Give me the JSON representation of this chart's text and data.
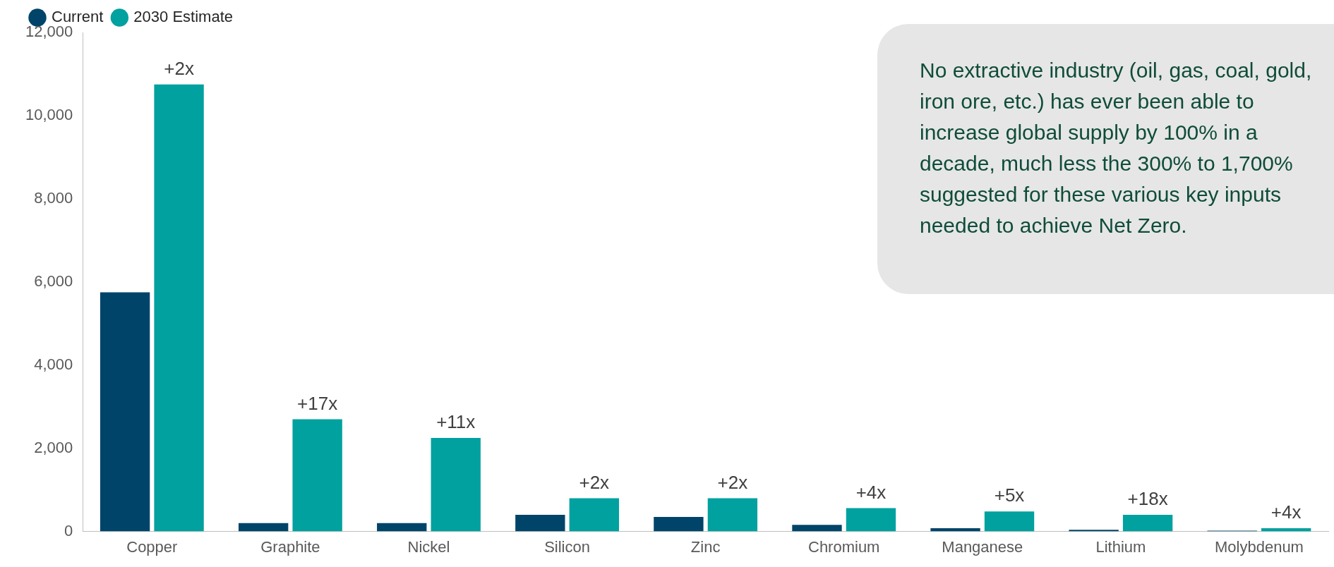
{
  "chart_data": {
    "type": "bar",
    "categories": [
      "Copper",
      "Graphite",
      "Nickel",
      "Silicon",
      "Zinc",
      "Chromium",
      "Manganese",
      "Lithium",
      "Molybdenum"
    ],
    "series": [
      {
        "name": "Current",
        "color": "#00446a",
        "values": [
          5750,
          200,
          200,
          400,
          350,
          160,
          80,
          40,
          20
        ]
      },
      {
        "name": "2030 Estimate",
        "color": "#00a19f",
        "values": [
          10750,
          2700,
          2250,
          800,
          800,
          560,
          480,
          400,
          80
        ]
      }
    ],
    "ylim": [
      0,
      12000
    ],
    "yticks": [
      0,
      {
        "value": 2000,
        "label": "2,000"
      },
      {
        "value": 4000,
        "label": "4,000"
      },
      {
        "value": 6000,
        "label": "6,000"
      },
      {
        "value": 8000,
        "label": "8,000"
      },
      {
        "value": 10000,
        "label": "10,000"
      },
      {
        "value": 12000,
        "label": "12,000"
      }
    ],
    "grid": false,
    "legend": "top left",
    "annotations": [
      {
        "text": "+2x",
        "x": "Copper",
        "y": 10750
      },
      {
        "text": "+17x",
        "x": "Graphite",
        "y": 2700
      },
      {
        "text": "+11x",
        "x": "Nickel",
        "y": 2250
      },
      {
        "text": "+2x",
        "x": "Silicon",
        "y": 800
      },
      {
        "text": "+2x",
        "x": "Zinc",
        "y": 800
      },
      {
        "text": "+4x",
        "x": "Chromium",
        "y": 560
      },
      {
        "text": "+5x",
        "x": "Manganese",
        "y": 480
      },
      {
        "text": "+18x",
        "x": "Lithium",
        "y": 400
      },
      {
        "text": "+4x",
        "x": "Molybdenum",
        "y": 80
      },
      "No extractive industry (oil, gas, coal, gold, iron ore, etc.) has ever been able to increase global supply by 100% in a decade, much less the 300% to 1,700% suggested for these various key inputs needed to achieve Net Zero."
    ]
  }
}
